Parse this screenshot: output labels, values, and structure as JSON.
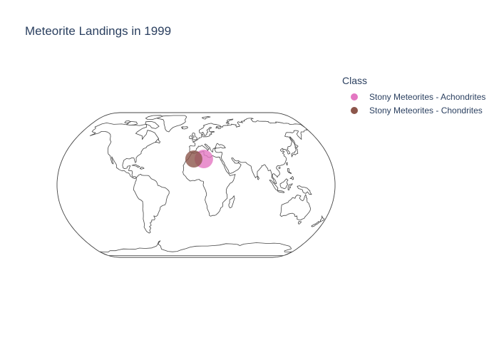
{
  "chart_data": {
    "type": "scatter",
    "subtype": "scatter_geo",
    "projection": "natural earth",
    "title": "Meteorite Landings in 1999",
    "legend": {
      "title": "Class",
      "placement": "top-right"
    },
    "series": [
      {
        "name": "Stony Meteorites - Achondrites",
        "color": "#e377c2",
        "points": [
          {
            "lon": 10.5,
            "lat": 29.0,
            "relative_size": 1.0
          }
        ]
      },
      {
        "name": "Stony Meteorites - Chondrites",
        "color": "#8c564b",
        "points": [
          {
            "lon": -3.0,
            "lat": 29.0,
            "relative_size": 0.85
          }
        ]
      }
    ]
  }
}
